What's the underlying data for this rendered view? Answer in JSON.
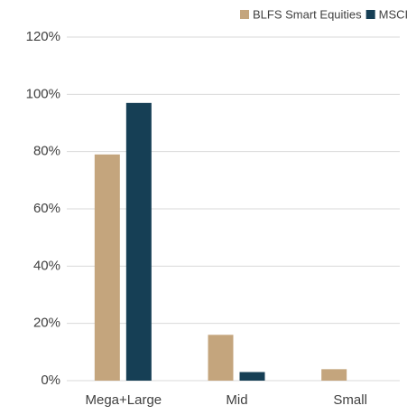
{
  "chart_data": {
    "type": "bar",
    "categories": [
      "Mega+Large",
      "Mid",
      "Small"
    ],
    "series": [
      {
        "name": "BLFS Smart Equities",
        "color": "#c4a57d",
        "values": [
          79,
          16,
          4
        ]
      },
      {
        "name": "MSCI ACWI",
        "color": "#163f55",
        "values": [
          97,
          3,
          0
        ]
      }
    ],
    "ylim": [
      0,
      120
    ],
    "yticks": [
      {
        "value": 0,
        "label": "0%"
      },
      {
        "value": 20,
        "label": "20%"
      },
      {
        "value": 40,
        "label": "40%"
      },
      {
        "value": 60,
        "label": "60%"
      },
      {
        "value": 80,
        "label": "80%"
      },
      {
        "value": 100,
        "label": "100%"
      },
      {
        "value": 120,
        "label": "120%"
      }
    ],
    "grid": true,
    "legend": "top-right"
  }
}
